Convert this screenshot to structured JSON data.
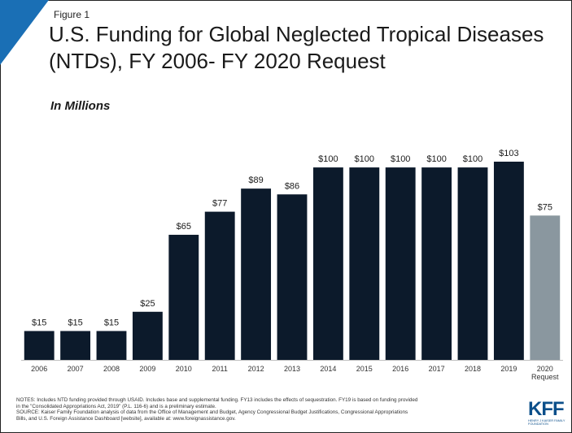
{
  "figure_label": "Figure 1",
  "title": "U.S. Funding for Global Neglected Tropical Diseases (NTDs), FY 2006- FY 2020 Request",
  "subtitle": "In Millions",
  "notes": [
    "NOTES: Includes NTD funding provided through USAID. Includes base and supplemental funding. FY13 includes the effects of sequestration. FY19 is based on funding provided",
    "in the \"Consolidated Appropriations Act, 2019\" (P.L. 116-6) and is a preliminary estimate.",
    "SOURCE: Kaiser Family Foundation analysis of data from the Office of Management and Budget, Agency Congressional Budget Justifications, Congressional Appropriations",
    "Bills, and U.S. Foreign Assistance Dashboard [website], available at: www.foreignassistance.gov."
  ],
  "logo": {
    "text": "KFF",
    "subtext": "HENRY J KAISER FAMILY FOUNDATION"
  },
  "colors": {
    "bar": "#0c1a2b",
    "request_bar": "#8a979f",
    "accent": "#1a6fb5",
    "baseline": "#bfbfbf"
  },
  "chart_data": {
    "type": "bar",
    "categories": [
      "2006",
      "2007",
      "2008",
      "2009",
      "2010",
      "2011",
      "2012",
      "2013",
      "2014",
      "2015",
      "2016",
      "2017",
      "2018",
      "2019",
      "2020 Request"
    ],
    "category_lines": [
      [
        "2006"
      ],
      [
        "2007"
      ],
      [
        "2008"
      ],
      [
        "2009"
      ],
      [
        "2010"
      ],
      [
        "2011"
      ],
      [
        "2012"
      ],
      [
        "2013"
      ],
      [
        "2014"
      ],
      [
        "2015"
      ],
      [
        "2016"
      ],
      [
        "2017"
      ],
      [
        "2018"
      ],
      [
        "2019"
      ],
      [
        "2020",
        "Request"
      ]
    ],
    "values": [
      15,
      15,
      15,
      25,
      65,
      77,
      89,
      86,
      100,
      100,
      100,
      100,
      100,
      103,
      75
    ],
    "value_labels": [
      "$15",
      "$15",
      "$15",
      "$25",
      "$65",
      "$77",
      "$89",
      "$86",
      "$100",
      "$100",
      "$100",
      "$100",
      "$100",
      "$103",
      "$75"
    ],
    "highlight_index": 14,
    "title": "U.S. Funding for Global Neglected Tropical Diseases (NTDs), FY 2006- FY 2020 Request",
    "ylabel": "In Millions",
    "xlabel": "",
    "ylim": [
      0,
      103
    ],
    "grid": false,
    "legend": "none"
  }
}
